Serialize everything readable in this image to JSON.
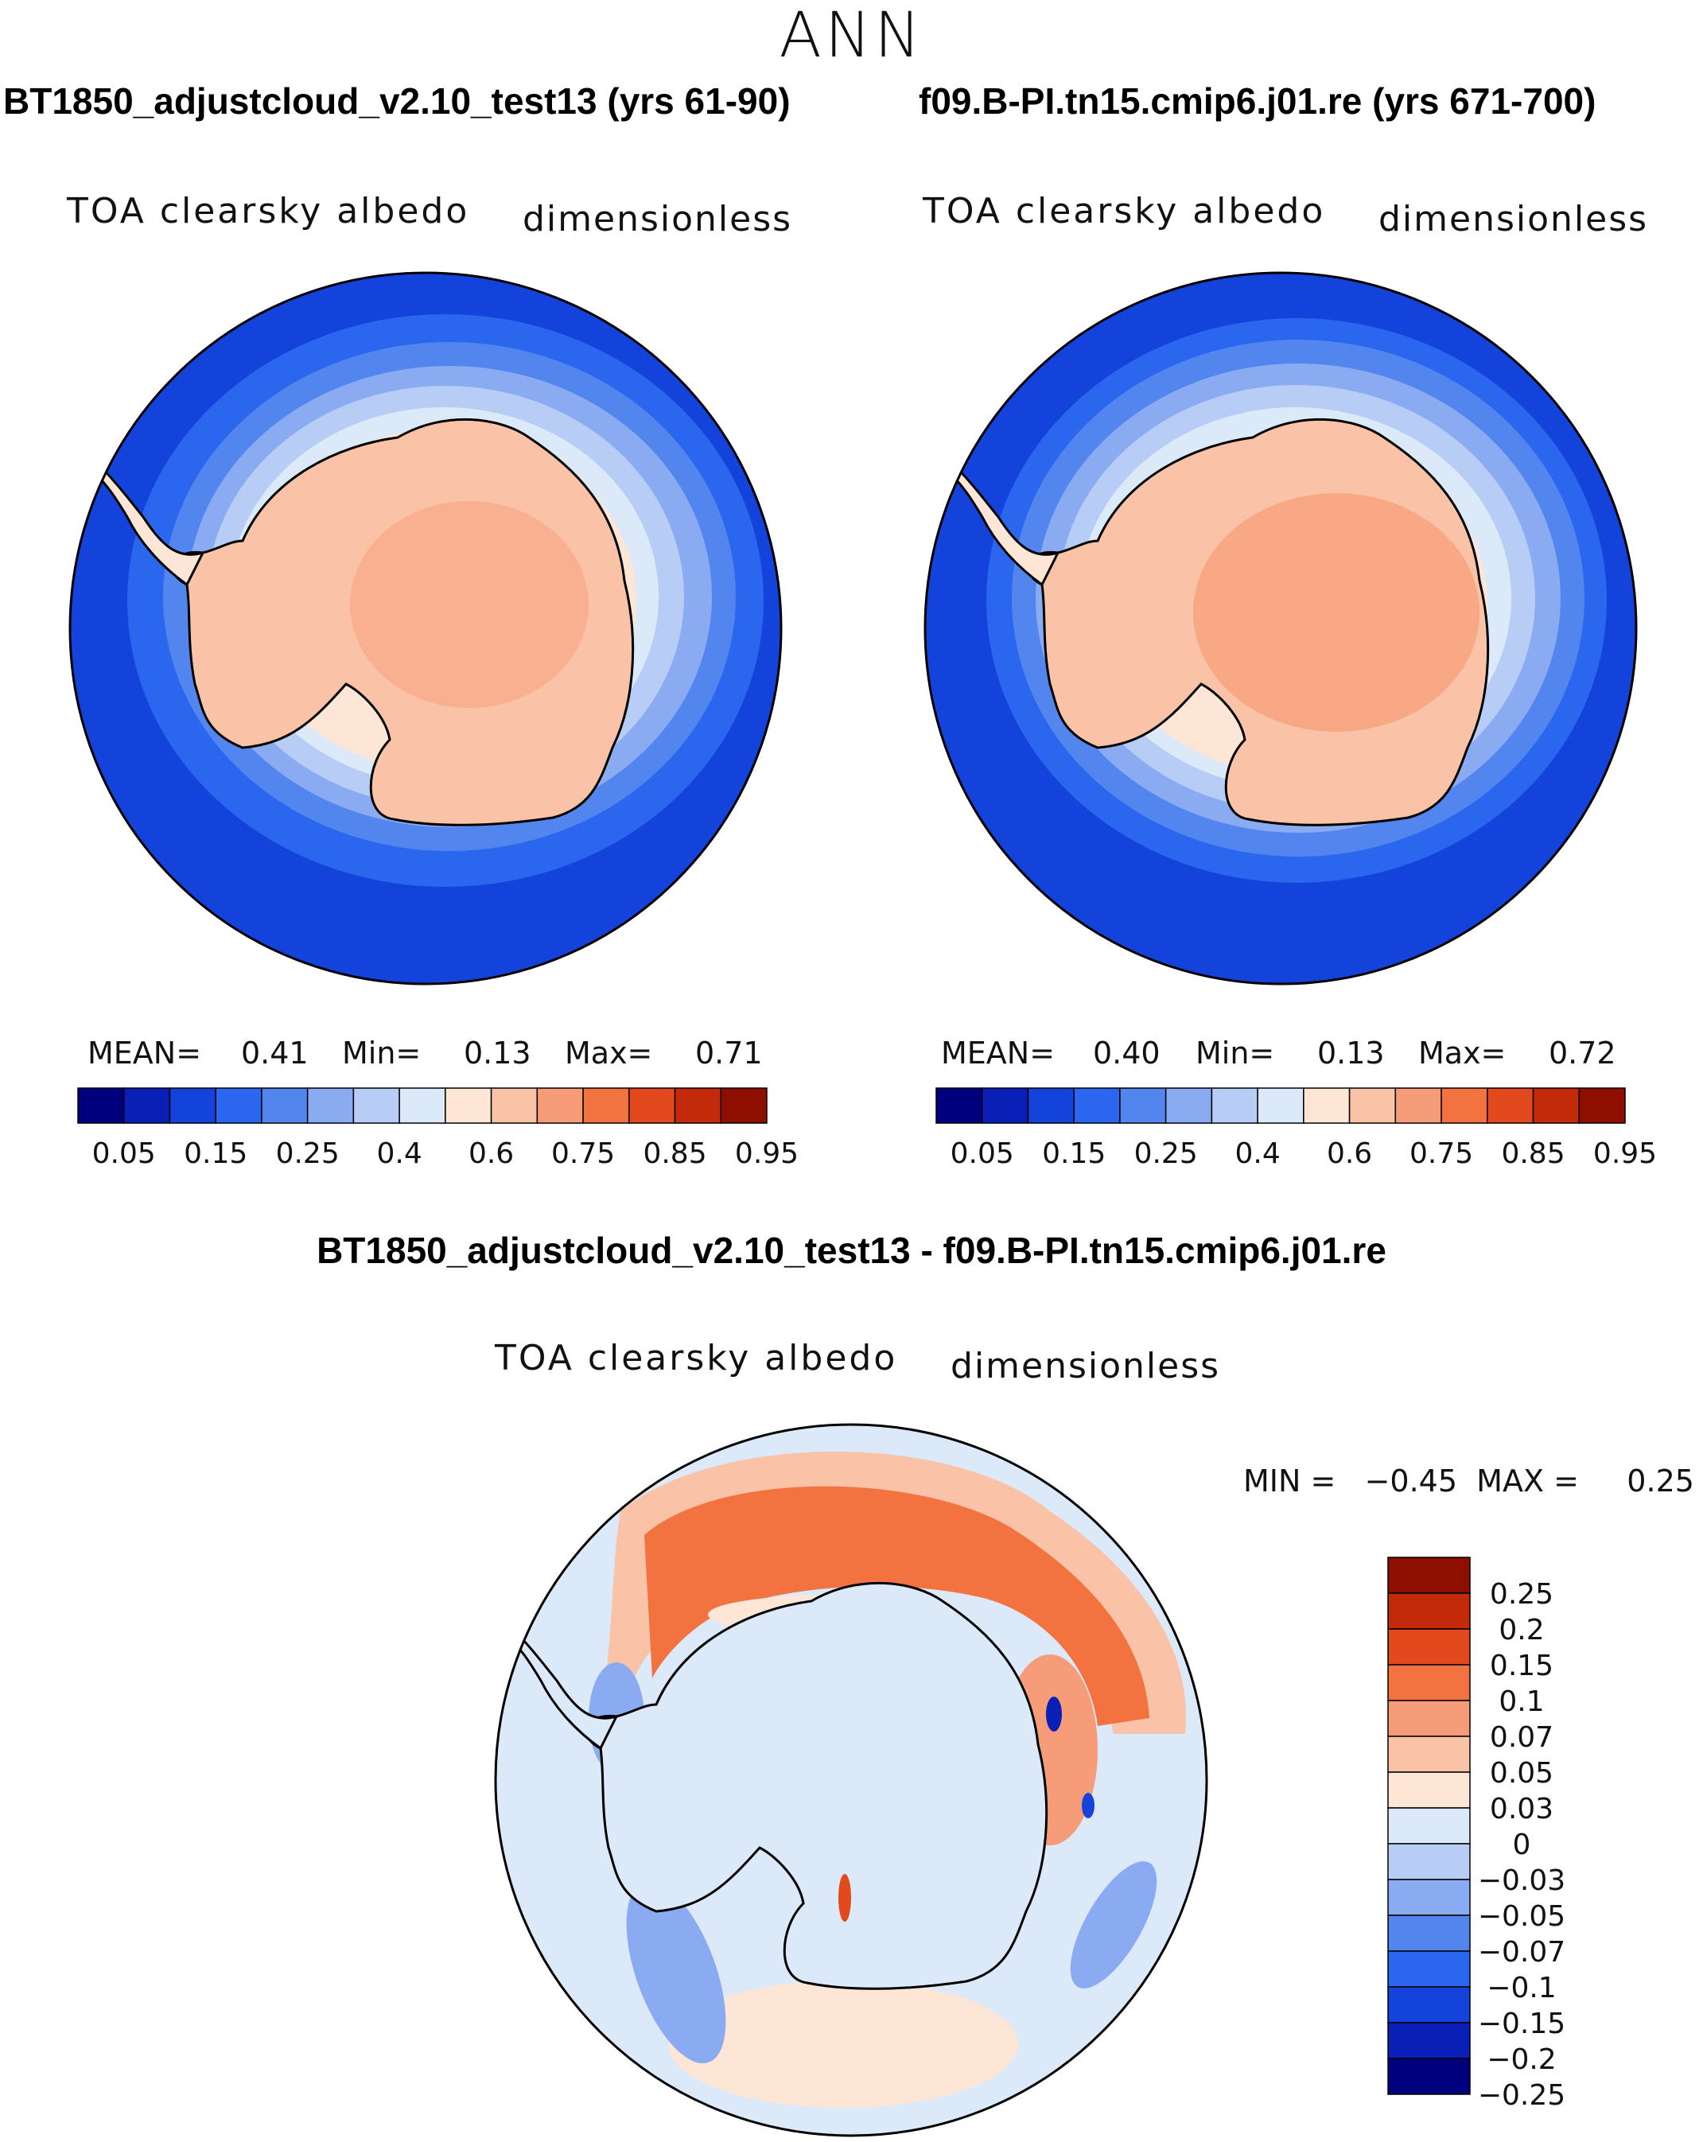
{
  "season": "ANN",
  "panels": [
    {
      "case_title": "BT1850_adjustcloud_v2.10_test13 (yrs 61-90)",
      "variable": "TOA clearsky albedo",
      "units": "dimensionless",
      "stats": {
        "mean_label": "MEAN=",
        "mean": "0.41",
        "min_label": "Min=",
        "min": "0.13",
        "max_label": "Max=",
        "max": "0.71"
      }
    },
    {
      "case_title": "f09.B-PI.tn15.cmip6.j01.re (yrs 671-700)",
      "variable": "TOA clearsky albedo",
      "units": "dimensionless",
      "stats": {
        "mean_label": "MEAN=",
        "mean": "0.40",
        "min_label": "Min=",
        "min": "0.13",
        "max_label": "Max=",
        "max": "0.72"
      }
    }
  ],
  "diff_panel": {
    "title": "BT1850_adjustcloud_v2.10_test13 - f09.B-PI.tn15.cmip6.j01.re",
    "variable": "TOA clearsky albedo",
    "units": "dimensionless",
    "minmax_text": "MIN =   −0.45  MAX =     0.25"
  },
  "chart_data": [
    {
      "type": "heatmap",
      "projection": "south-polar-stereographic",
      "title": "BT1850_adjustcloud_v2.10_test13 (yrs 61-90)",
      "variable": "TOA clearsky albedo",
      "units": "dimensionless",
      "mean": 0.41,
      "min": 0.13,
      "max": 0.71,
      "levels": [
        0.05,
        0.1,
        0.15,
        0.2,
        0.25,
        0.3,
        0.4,
        0.5,
        0.6,
        0.7,
        0.75,
        0.8,
        0.85,
        0.9,
        0.95
      ],
      "colorbar_labels": [
        "0.05",
        "0.15",
        "0.25",
        "0.4",
        "0.6",
        "0.75",
        "0.85",
        "0.95"
      ],
      "colors": [
        "#00007f",
        "#0a1fb5",
        "#1443dc",
        "#2a66ee",
        "#5286ee",
        "#8aaaf2",
        "#b7cdf6",
        "#dce9f9",
        "#fde6d6",
        "#fac2a6",
        "#f79c78",
        "#f2733f",
        "#e2491c",
        "#c32a0a",
        "#8e0f00"
      ]
    },
    {
      "type": "heatmap",
      "projection": "south-polar-stereographic",
      "title": "f09.B-PI.tn15.cmip6.j01.re (yrs 671-700)",
      "variable": "TOA clearsky albedo",
      "units": "dimensionless",
      "mean": 0.4,
      "min": 0.13,
      "max": 0.72,
      "levels": [
        0.05,
        0.1,
        0.15,
        0.2,
        0.25,
        0.3,
        0.4,
        0.5,
        0.6,
        0.7,
        0.75,
        0.8,
        0.85,
        0.9,
        0.95
      ],
      "colorbar_labels": [
        "0.05",
        "0.15",
        "0.25",
        "0.4",
        "0.6",
        "0.75",
        "0.85",
        "0.95"
      ],
      "colors": [
        "#00007f",
        "#0a1fb5",
        "#1443dc",
        "#2a66ee",
        "#5286ee",
        "#8aaaf2",
        "#b7cdf6",
        "#dce9f9",
        "#fde6d6",
        "#fac2a6",
        "#f79c78",
        "#f2733f",
        "#e2491c",
        "#c32a0a",
        "#8e0f00"
      ]
    },
    {
      "type": "heatmap",
      "projection": "south-polar-stereographic",
      "title": "BT1850_adjustcloud_v2.10_test13 - f09.B-PI.tn15.cmip6.j01.re",
      "variable": "TOA clearsky albedo",
      "units": "dimensionless",
      "min": -0.45,
      "max": 0.25,
      "levels": [
        -0.25,
        -0.2,
        -0.15,
        -0.1,
        -0.07,
        -0.05,
        -0.03,
        0,
        0.03,
        0.05,
        0.07,
        0.1,
        0.15,
        0.2,
        0.25
      ],
      "colorbar_labels": [
        "0.25",
        "0.2",
        "0.15",
        "0.1",
        "0.07",
        "0.05",
        "0.03",
        "0",
        "−0.03",
        "−0.05",
        "−0.07",
        "−0.1",
        "−0.15",
        "−0.2",
        "−0.25"
      ],
      "colors": [
        "#00007f",
        "#0a1fb5",
        "#1443dc",
        "#2a66ee",
        "#5286ee",
        "#8aaaf2",
        "#b7cdf6",
        "#dce9f9",
        "#fde6d6",
        "#fac2a6",
        "#f79c78",
        "#f2733f",
        "#e2491c",
        "#c32a0a",
        "#8e0f00"
      ]
    }
  ]
}
